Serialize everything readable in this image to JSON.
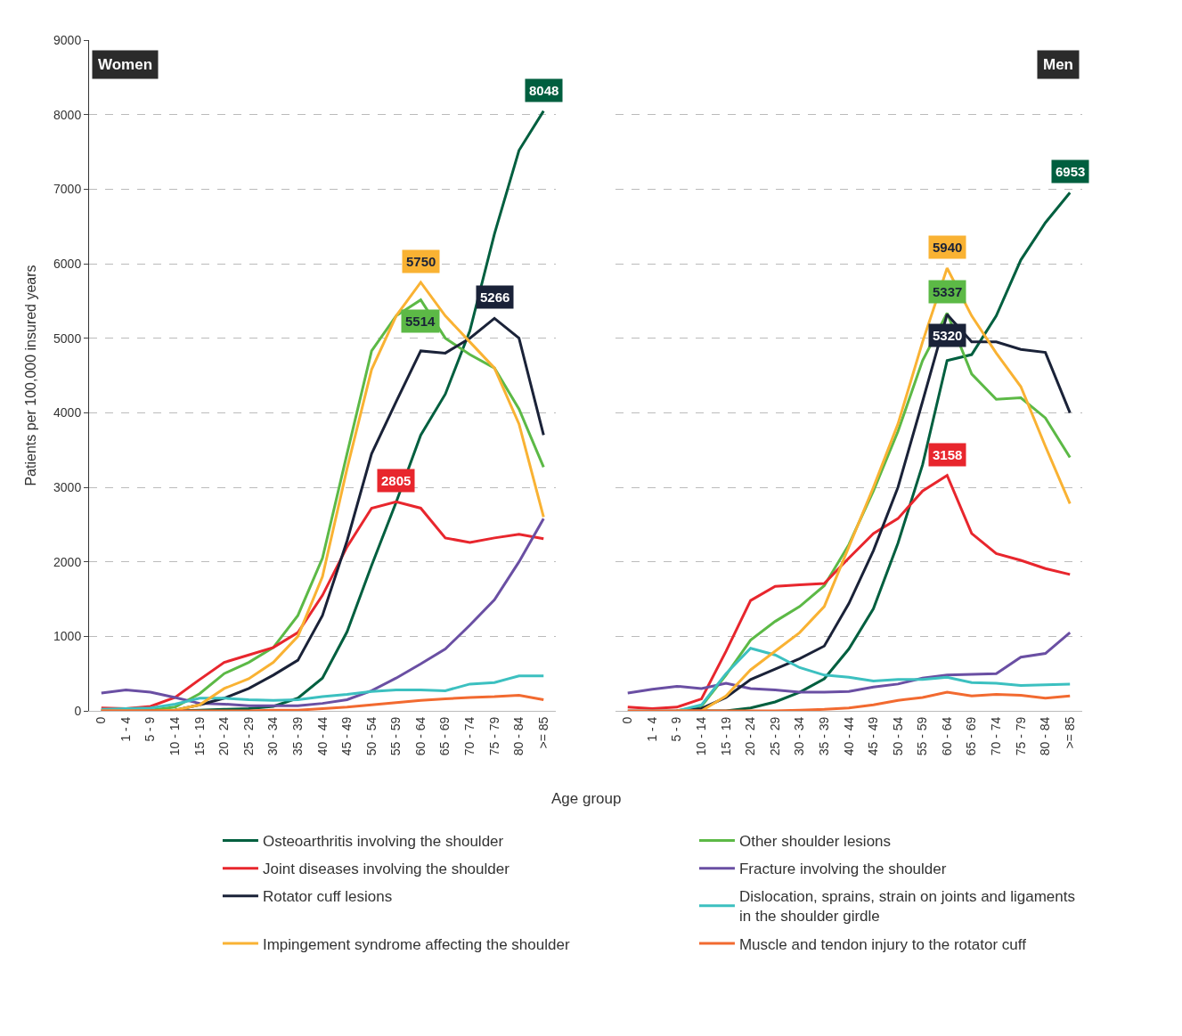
{
  "chart_data": [
    {
      "type": "line",
      "title": "Women",
      "ylabel": "Patients per 100,000 insured years",
      "xlabel": "Age group",
      "categories": [
        "0",
        "1 - 4",
        "5 - 9",
        "10 - 14",
        "15 - 19",
        "20 - 24",
        "25 - 29",
        "30 - 34",
        "35 - 39",
        "40 - 44",
        "45 - 49",
        "50 - 54",
        "55 - 59",
        "60 - 64",
        "65 - 69",
        "70 - 74",
        "75 - 79",
        "80 - 84",
        ">= 85"
      ],
      "ylim": [
        0,
        9000
      ],
      "yticks": [
        0,
        1000,
        2000,
        3000,
        4000,
        5000,
        6000,
        7000,
        8000,
        9000
      ],
      "grid": "y",
      "legend": "bottom",
      "marker": "none",
      "line_style": "solid",
      "series": [
        {
          "name": "Osteoarthritis involving the shoulder",
          "color": "#005f3f",
          "values": [
            0,
            0,
            0,
            0,
            10,
            20,
            30,
            60,
            170,
            440,
            1060,
            1950,
            2800,
            3700,
            4250,
            5100,
            6400,
            7520,
            8048
          ],
          "value_labels": [
            null,
            null,
            null,
            null,
            null,
            null,
            null,
            null,
            null,
            null,
            null,
            null,
            null,
            null,
            null,
            null,
            null,
            null,
            "8048"
          ]
        },
        {
          "name": "Other shoulder lesions",
          "color": "#5cb946",
          "values": [
            0,
            0,
            10,
            50,
            230,
            500,
            650,
            850,
            1280,
            2050,
            3450,
            4830,
            5300,
            5514,
            5000,
            4780,
            4600,
            4050,
            3270
          ],
          "value_labels": [
            null,
            null,
            null,
            null,
            null,
            null,
            null,
            null,
            null,
            null,
            null,
            null,
            null,
            "5514",
            null,
            null,
            null,
            null,
            null
          ]
        },
        {
          "name": "Joint diseases involving the shoulder",
          "color": "#e8262d",
          "values": [
            40,
            30,
            60,
            180,
            420,
            650,
            750,
            850,
            1050,
            1550,
            2200,
            2720,
            2805,
            2720,
            2320,
            2260,
            2320,
            2370,
            2310
          ],
          "value_labels": [
            null,
            null,
            null,
            null,
            null,
            null,
            null,
            null,
            null,
            null,
            null,
            null,
            "2805",
            null,
            null,
            null,
            null,
            null,
            null
          ]
        },
        {
          "name": "Fracture involving the shoulder",
          "color": "#6a4fa3",
          "values": [
            240,
            280,
            250,
            180,
            100,
            90,
            70,
            70,
            70,
            100,
            150,
            270,
            440,
            630,
            830,
            1150,
            1490,
            2000,
            2580
          ]
        },
        {
          "name": "Rotator cuff lesions",
          "color": "#1a2238",
          "values": [
            0,
            0,
            0,
            10,
            80,
            170,
            300,
            480,
            680,
            1280,
            2280,
            3450,
            4150,
            4830,
            4800,
            5000,
            5266,
            5000,
            3700
          ],
          "value_labels": [
            null,
            null,
            null,
            null,
            null,
            null,
            null,
            null,
            null,
            null,
            null,
            null,
            null,
            null,
            null,
            null,
            "5266",
            null,
            null
          ]
        },
        {
          "name": "Dislocation, sprains, strain on joints and ligaments in the shoulder girdle",
          "color": "#3cc0c0",
          "values": [
            20,
            30,
            40,
            90,
            170,
            170,
            150,
            140,
            150,
            190,
            220,
            260,
            280,
            280,
            270,
            360,
            380,
            470,
            470
          ]
        },
        {
          "name": "Impingement syndrome affecting the shoulder",
          "color": "#f9b233",
          "values": [
            0,
            0,
            0,
            10,
            80,
            300,
            430,
            650,
            1000,
            1800,
            3250,
            4580,
            5300,
            5750,
            5300,
            4950,
            4600,
            3850,
            2600
          ],
          "value_labels": [
            null,
            null,
            null,
            null,
            null,
            null,
            null,
            null,
            null,
            null,
            null,
            null,
            null,
            "5750",
            null,
            null,
            null,
            null,
            null
          ]
        },
        {
          "name": "Muscle and tendon injury to the rotator cuff",
          "color": "#f26a30",
          "values": [
            0,
            0,
            0,
            0,
            0,
            0,
            0,
            10,
            10,
            30,
            50,
            80,
            110,
            140,
            160,
            180,
            190,
            210,
            150
          ]
        }
      ]
    },
    {
      "type": "line",
      "title": "Men",
      "categories": [
        "0",
        "1 - 4",
        "5 - 9",
        "10 - 14",
        "15 - 19",
        "20 - 24",
        "25 - 29",
        "30 - 34",
        "35 - 39",
        "40 - 44",
        "45 - 49",
        "50 - 54",
        "55 - 59",
        "60 - 64",
        "65 - 69",
        "70 - 74",
        "75 - 79",
        "80 - 84",
        ">= 85"
      ],
      "ylim": [
        0,
        9000
      ],
      "grid": "y",
      "tick_labels": "x",
      "marker": "none",
      "line_style": "solid",
      "series": [
        {
          "color": "#005f3f",
          "values": [
            null,
            null,
            0,
            0,
            0,
            40,
            120,
            250,
            430,
            830,
            1370,
            2250,
            3300,
            4700,
            4780,
            5300,
            6050,
            6550,
            6953
          ],
          "value_labels": [
            null,
            null,
            null,
            null,
            null,
            null,
            null,
            null,
            null,
            null,
            null,
            null,
            null,
            null,
            null,
            null,
            null,
            null,
            "6953"
          ]
        },
        {
          "color": "#5cb946",
          "values": [
            null,
            null,
            0,
            60,
            480,
            950,
            1200,
            1400,
            1680,
            2230,
            2950,
            3750,
            4700,
            5337,
            4520,
            4180,
            4200,
            3930,
            3400
          ],
          "value_labels": [
            null,
            null,
            null,
            null,
            null,
            null,
            null,
            null,
            null,
            null,
            null,
            null,
            null,
            "5337",
            null,
            null,
            null,
            null,
            null
          ]
        },
        {
          "color": "#e8262d",
          "values": [
            50,
            30,
            50,
            160,
            800,
            1480,
            1670,
            1690,
            1710,
            2050,
            2380,
            2580,
            2950,
            3158,
            2380,
            2110,
            2020,
            1910,
            1830
          ],
          "value_labels": [
            null,
            null,
            null,
            null,
            null,
            null,
            null,
            null,
            null,
            null,
            null,
            null,
            null,
            "3158",
            null,
            null,
            null,
            null,
            null
          ]
        },
        {
          "color": "#6a4fa3",
          "values": [
            240,
            290,
            330,
            300,
            370,
            300,
            280,
            250,
            250,
            260,
            320,
            360,
            440,
            480,
            490,
            500,
            720,
            770,
            1050
          ]
        },
        {
          "color": "#1a2238",
          "values": [
            null,
            null,
            0,
            30,
            180,
            420,
            560,
            700,
            870,
            1440,
            2150,
            3000,
            4150,
            5320,
            4950,
            4950,
            4850,
            4810,
            4000
          ],
          "value_labels": [
            null,
            null,
            null,
            null,
            null,
            null,
            null,
            null,
            null,
            null,
            null,
            null,
            null,
            "5320",
            null,
            null,
            null,
            null,
            null
          ]
        },
        {
          "color": "#3cc0c0",
          "values": [
            0,
            0,
            0,
            80,
            500,
            840,
            750,
            580,
            480,
            450,
            400,
            420,
            420,
            450,
            380,
            370,
            340,
            350,
            360
          ]
        },
        {
          "color": "#f9b233",
          "values": [
            null,
            null,
            0,
            0,
            200,
            550,
            800,
            1050,
            1400,
            2200,
            3000,
            3850,
            4950,
            5940,
            5300,
            4800,
            4350,
            3550,
            2780
          ],
          "value_labels": [
            null,
            null,
            null,
            null,
            null,
            null,
            null,
            null,
            null,
            null,
            null,
            null,
            null,
            "5940",
            null,
            null,
            null,
            null,
            null
          ]
        },
        {
          "color": "#f26a30",
          "values": [
            0,
            0,
            0,
            0,
            0,
            0,
            0,
            10,
            20,
            40,
            80,
            140,
            180,
            250,
            200,
            220,
            210,
            170,
            200
          ]
        }
      ]
    }
  ]
}
